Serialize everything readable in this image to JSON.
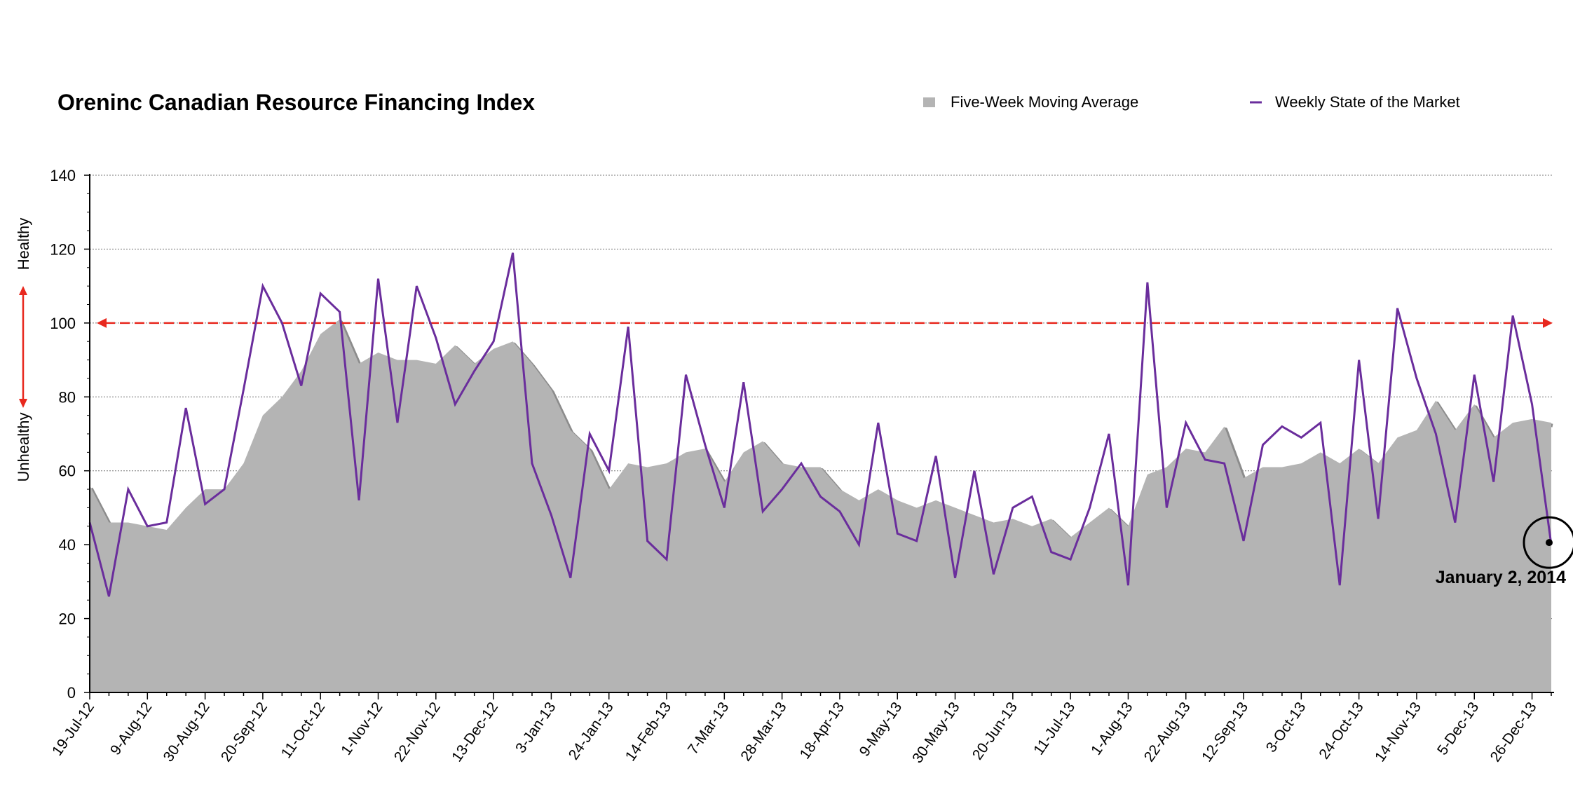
{
  "chart_data": {
    "type": "area+line",
    "title": "Oreninc Canadian Resource Financing Index",
    "ylim": [
      0,
      140
    ],
    "y_ticks": [
      0,
      20,
      40,
      60,
      80,
      100,
      120,
      140
    ],
    "grid": true,
    "legend_position": "top-right",
    "side_labels": {
      "top": "Healthy",
      "bottom": "Unhealthy"
    },
    "reference_line": {
      "value": 100,
      "color": "#e8281e"
    },
    "annotation": {
      "label": "January 2, 2014",
      "value": 40
    },
    "x_tick_labels": [
      "19-Jul-12",
      "9-Aug-12",
      "30-Aug-12",
      "20-Sep-12",
      "11-Oct-12",
      "1-Nov-12",
      "22-Nov-12",
      "13-Dec-12",
      "3-Jan-13",
      "24-Jan-13",
      "14-Feb-13",
      "7-Mar-13",
      "28-Mar-13",
      "18-Apr-13",
      "9-May-13",
      "30-May-13",
      "20-Jun-13",
      "11-Jul-13",
      "1-Aug-13",
      "22-Aug-13",
      "12-Sep-13",
      "3-Oct-13",
      "24-Oct-13",
      "14-Nov-13",
      "5-Dec-13",
      "26-Dec-13"
    ],
    "series": [
      {
        "name": "Five-Week Moving Average",
        "kind": "area",
        "color": "#b4b4b4",
        "values": [
          56,
          46,
          46,
          45,
          44,
          50,
          55,
          55,
          62,
          75,
          80,
          87,
          97,
          101,
          89,
          92,
          90,
          90,
          89,
          94,
          89,
          93,
          95,
          89,
          82,
          71,
          66,
          55,
          62,
          61,
          62,
          65,
          66,
          57,
          65,
          68,
          62,
          61,
          61,
          55,
          52,
          55,
          52,
          50,
          52,
          50,
          48,
          46,
          47,
          45,
          47,
          42,
          46,
          50,
          45,
          59,
          61,
          66,
          65,
          72,
          58,
          61,
          61,
          62,
          65,
          62,
          66,
          62,
          69,
          71,
          79,
          71,
          78,
          69,
          73,
          74,
          73
        ]
      },
      {
        "name": "Weekly State of the Market",
        "kind": "line",
        "color": "#6a2d9c",
        "values": [
          46,
          26,
          55,
          45,
          46,
          77,
          51,
          55,
          82,
          110,
          100,
          83,
          108,
          103,
          52,
          112,
          73,
          110,
          96,
          78,
          87,
          95,
          119,
          62,
          48,
          31,
          70,
          60,
          99,
          41,
          36,
          86,
          67,
          50,
          84,
          49,
          55,
          62,
          53,
          49,
          40,
          73,
          43,
          41,
          64,
          31,
          60,
          32,
          50,
          53,
          38,
          36,
          50,
          70,
          29,
          111,
          50,
          73,
          63,
          62,
          41,
          67,
          72,
          69,
          73,
          29,
          90,
          47,
          104,
          85,
          70,
          46,
          86,
          57,
          102,
          78,
          40
        ]
      }
    ]
  }
}
